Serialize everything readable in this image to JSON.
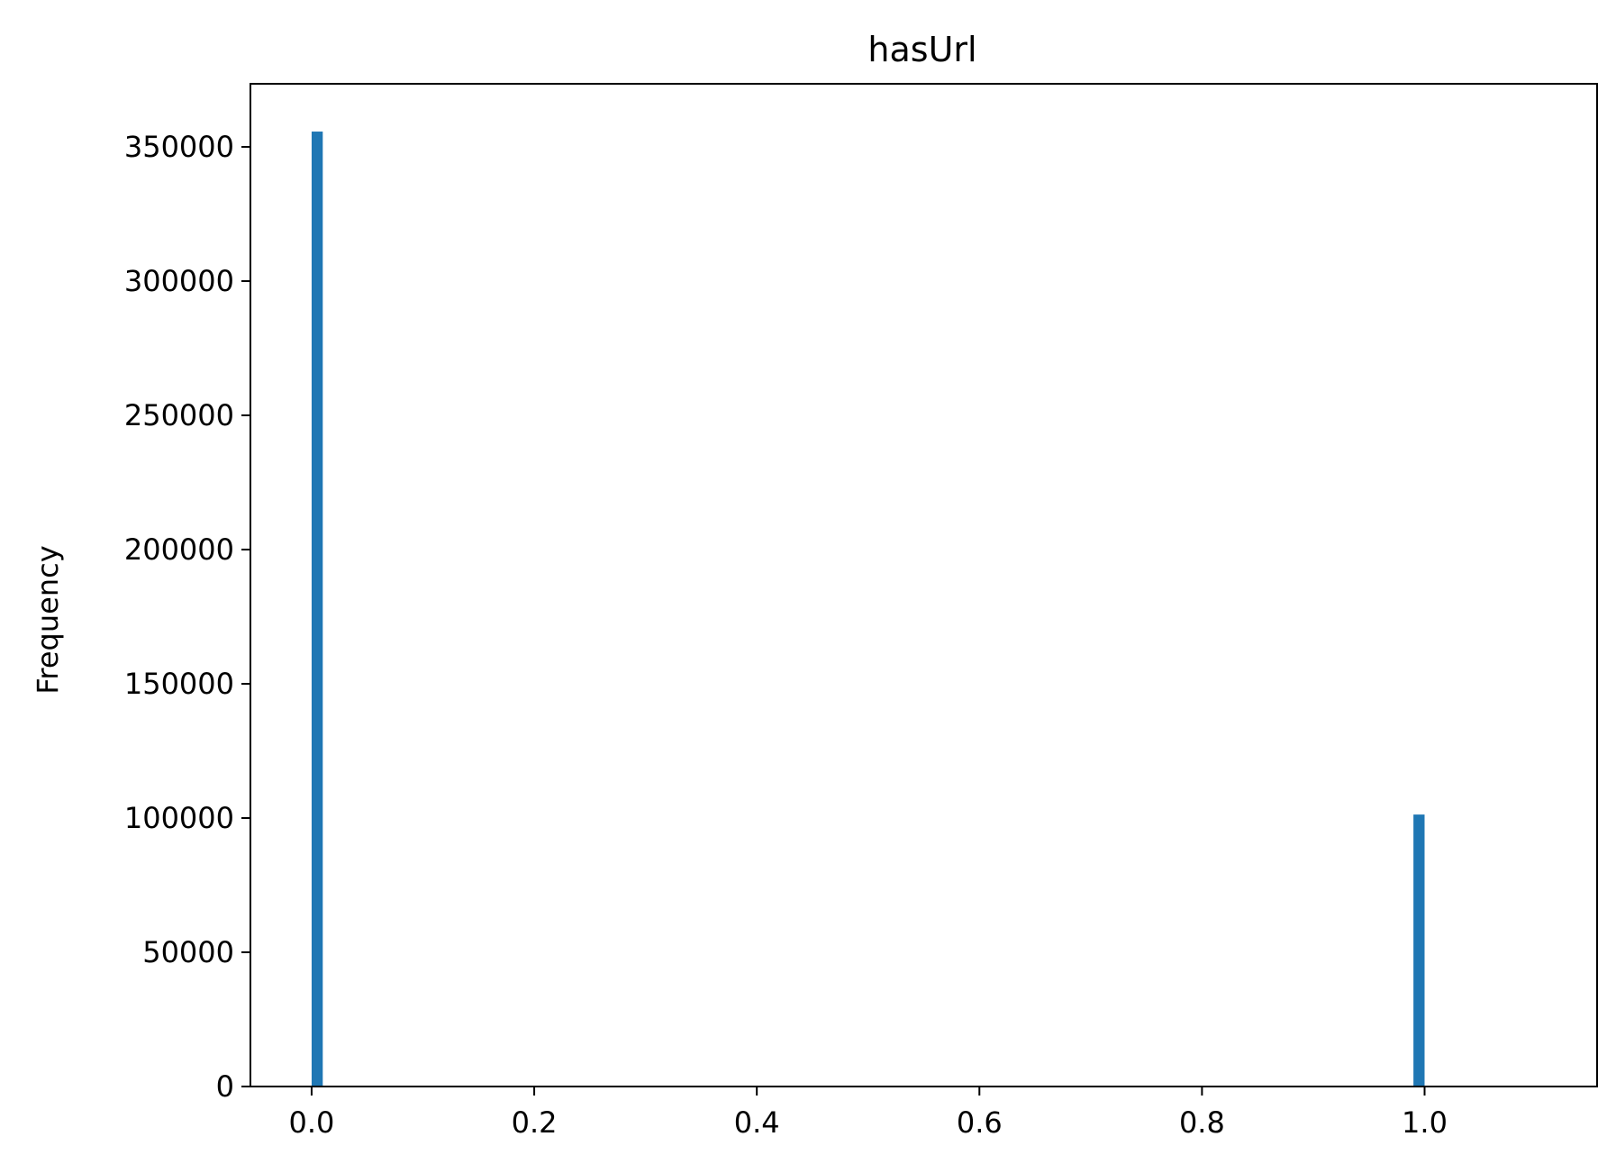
{
  "chart_data": {
    "type": "bar",
    "title": "hasUrl",
    "xlabel": "",
    "ylabel": "Frequency",
    "xlim": [
      -0.055,
      1.155
    ],
    "ylim": [
      0,
      373500
    ],
    "x_ticks": [
      0.0,
      0.2,
      0.4,
      0.6,
      0.8,
      1.0
    ],
    "x_tick_labels": [
      "0.0",
      "0.2",
      "0.4",
      "0.6",
      "0.8",
      "1.0"
    ],
    "y_ticks": [
      0,
      50000,
      100000,
      150000,
      200000,
      250000,
      300000,
      350000
    ],
    "y_tick_labels": [
      "0",
      "50000",
      "100000",
      "150000",
      "200000",
      "250000",
      "300000",
      "350000"
    ],
    "bar_width": 0.01,
    "bars": [
      {
        "x": 0.0,
        "value": 355700
      },
      {
        "x": 0.99,
        "value": 101300
      }
    ],
    "colors": {
      "bar": "#1f77b4",
      "axes": "#000000"
    },
    "grid": false
  }
}
